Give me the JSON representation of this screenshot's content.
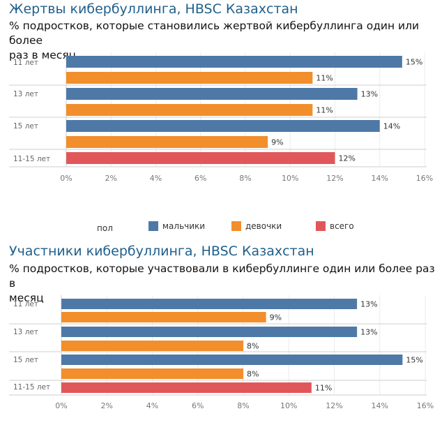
{
  "colors": {
    "boys": "#4e79a7",
    "girls": "#f28e2b",
    "total": "#e15759"
  },
  "legend": {
    "title": "пол",
    "items": [
      {
        "key": "boys",
        "label": "мальчики",
        "color": "#4e79a7"
      },
      {
        "key": "girls",
        "label": "девочки",
        "color": "#f28e2b"
      },
      {
        "key": "total",
        "label": "всего",
        "color": "#e15759"
      }
    ]
  },
  "chart_data": [
    {
      "type": "bar",
      "title": "Жертвы кибербуллинга, HBSC Казахстан",
      "subtitle_lines": [
        "% подростков, которые  становились жертвой кибербуллинга один или более",
        "раз  в месяц"
      ],
      "categories": [
        "11 лет",
        "13 лет",
        "15 лет",
        "11-15 лет"
      ],
      "xlim": [
        0,
        16
      ],
      "ticks": [
        "0%",
        "2%",
        "4%",
        "6%",
        "8%",
        "10%",
        "12%",
        "14%",
        "16%"
      ],
      "bars": [
        {
          "category": "11 лет",
          "series": "boys",
          "value": 15,
          "label": "15%"
        },
        {
          "category": "11 лет",
          "series": "girls",
          "value": 11,
          "label": "11%"
        },
        {
          "category": "13 лет",
          "series": "boys",
          "value": 13,
          "label": "13%"
        },
        {
          "category": "13 лет",
          "series": "girls",
          "value": 11,
          "label": "11%"
        },
        {
          "category": "15 лет",
          "series": "boys",
          "value": 14,
          "label": "14%"
        },
        {
          "category": "15 лет",
          "series": "girls",
          "value": 9,
          "label": "9%"
        },
        {
          "category": "11-15 лет",
          "series": "total",
          "value": 12,
          "label": "12%"
        }
      ]
    },
    {
      "type": "bar",
      "title": "Участники кибербуллинга, HBSC Казахстан",
      "subtitle_lines": [
        "% подростков, которые  участвовали в кибербуллинге  один или более раз  в",
        "месяц"
      ],
      "categories": [
        "11 лет",
        "13 лет",
        "15 лет",
        "11-15 лет"
      ],
      "xlim": [
        0,
        16
      ],
      "ticks": [
        "0%",
        "2%",
        "4%",
        "6%",
        "8%",
        "10%",
        "12%",
        "14%",
        "16%"
      ],
      "bars": [
        {
          "category": "11 лет",
          "series": "boys",
          "value": 13,
          "label": "13%"
        },
        {
          "category": "11 лет",
          "series": "girls",
          "value": 9,
          "label": "9%"
        },
        {
          "category": "13 лет",
          "series": "boys",
          "value": 13,
          "label": "13%"
        },
        {
          "category": "13 лет",
          "series": "girls",
          "value": 8,
          "label": "8%"
        },
        {
          "category": "15 лет",
          "series": "boys",
          "value": 15,
          "label": "15%"
        },
        {
          "category": "15 лет",
          "series": "girls",
          "value": 8,
          "label": "8%"
        },
        {
          "category": "11-15 лет",
          "series": "total",
          "value": 11,
          "label": "11%"
        }
      ]
    }
  ]
}
